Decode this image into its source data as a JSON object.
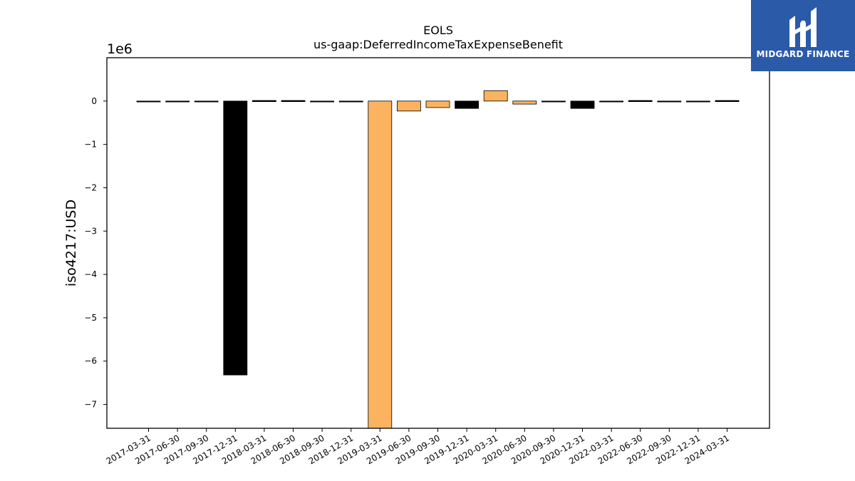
{
  "chart_data": {
    "type": "bar",
    "title": "EOLS",
    "subtitle": "us-gaap:DeferredIncomeTaxExpenseBenefit",
    "ylabel": "iso4217:USD",
    "xlabel": "",
    "y_scale_label": "1e6",
    "ylim": [
      -7.55,
      1.0
    ],
    "yticks": [
      0,
      -1,
      -2,
      -3,
      -4,
      -5,
      -6,
      -7
    ],
    "ytick_labels": [
      "0",
      "−1",
      "−2",
      "−3",
      "−4",
      "−5",
      "−6",
      "−7"
    ],
    "grid": false,
    "categories": [
      "2017-03-31",
      "2017-06-30",
      "2017-09-30",
      "2017-12-31",
      "2018-03-31",
      "2018-06-30",
      "2018-09-30",
      "2018-12-31",
      "2019-03-31",
      "2019-06-30",
      "2019-09-30",
      "2019-12-31",
      "2020-03-31",
      "2020-06-30",
      "2020-09-30",
      "2020-12-31",
      "2022-03-31",
      "2022-06-30",
      "2022-09-30",
      "2022-12-31",
      "2024-03-31"
    ],
    "values": [
      -0.02,
      -0.02,
      -0.02,
      -6.32,
      -0.01,
      -0.01,
      -0.02,
      -0.02,
      -7.6,
      -0.23,
      -0.15,
      -0.17,
      0.24,
      -0.07,
      -0.02,
      -0.17,
      -0.02,
      -0.01,
      -0.02,
      -0.02,
      -0.01
    ],
    "bar_colors": [
      "#000000",
      "#000000",
      "#000000",
      "#000000",
      "#000000",
      "#000000",
      "#000000",
      "#000000",
      "#fbb360",
      "#fbb360",
      "#fbb360",
      "#000000",
      "#fbb360",
      "#fbb360",
      "#000000",
      "#000000",
      "#000000",
      "#000000",
      "#000000",
      "#000000",
      "#000000"
    ]
  },
  "logo": {
    "text": "MIDGARD FINANCE",
    "background": "#2a5aa8"
  }
}
